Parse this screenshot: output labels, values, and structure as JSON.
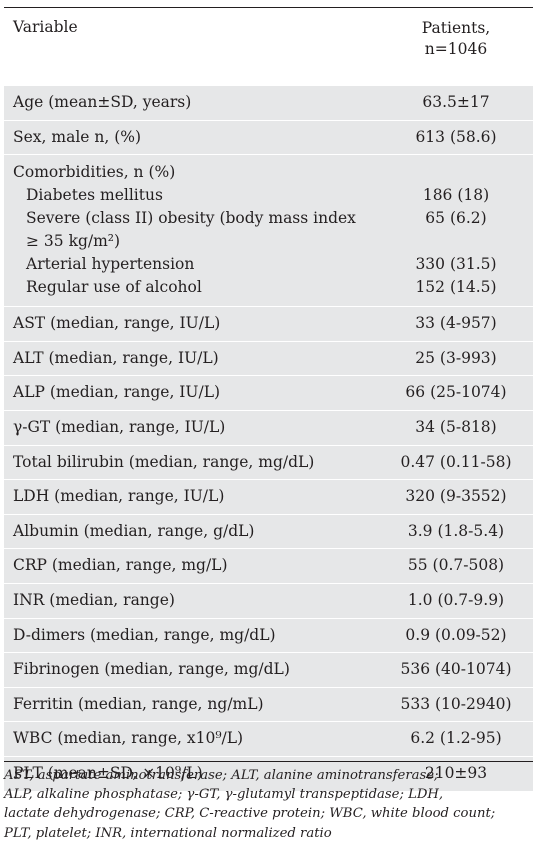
{
  "header": {
    "variable": "Variable",
    "patients_line1": "Patients,",
    "patients_line2": "n=1046"
  },
  "rows_top": [
    {
      "label": "Age (mean±SD, years)",
      "value": "63.5±17"
    },
    {
      "label": "Sex, male n, (%)",
      "value": "613 (58.6)"
    }
  ],
  "comorbidities": {
    "title": "Comorbidities, n (%)",
    "items": [
      {
        "label": "Diabetes mellitus",
        "value": "186 (18)"
      },
      {
        "label_line1": "Severe (class II) obesity (body mass index",
        "label_line2": "≥ 35 kg/m²)",
        "value": "65 (6.2)"
      },
      {
        "label": "Arterial hypertension",
        "value": "330 (31.5)"
      },
      {
        "label": "Regular use of alcohol",
        "value": "152 (14.5)"
      }
    ]
  },
  "rows_bottom": [
    {
      "label": "AST (median, range, IU/L)",
      "value": "33 (4-957)"
    },
    {
      "label": "ALT (median, range, IU/L)",
      "value": "25 (3-993)"
    },
    {
      "label": "ALP (median, range, IU/L)",
      "value": "66 (25-1074)"
    },
    {
      "label": "γ-GT (median, range, IU/L)",
      "value": "34 (5-818)"
    },
    {
      "label": "Total bilirubin (median, range, mg/dL)",
      "value": "0.47 (0.11-58)"
    },
    {
      "label": "LDH (median, range, IU/L)",
      "value": "320 (9-3552)"
    },
    {
      "label": "Albumin (median, range, g/dL)",
      "value": "3.9 (1.8-5.4)"
    },
    {
      "label": "CRP (median, range, mg/L)",
      "value": "55 (0.7-508)"
    },
    {
      "label": "INR (median, range)",
      "value": "1.0 (0.7-9.9)"
    },
    {
      "label": "D-dimers (median, range, mg/dL)",
      "value": "0.9 (0.09-52)"
    },
    {
      "label": "Fibrinogen (median, range, mg/dL)",
      "value": "536 (40-1074)"
    },
    {
      "label": "Ferritin (median, range, ng/mL)",
      "value": "533 (10-2940)"
    },
    {
      "label": "WBC (median, range, x10⁹/L)",
      "value": "6.2 (1.2-95)"
    },
    {
      "label": "PLT (mean±SD, ×10⁹/L)",
      "value": "210±93"
    }
  ],
  "footnote": {
    "line1": "AST, aspartate aminotransferase; ALT, alanine aminotransferase;",
    "line2": "ALP, alkaline phosphatase; γ-GT, γ-glutamyl transpeptidase; LDH,",
    "line3": "lactate dehydrogenase; CRP, C-reactive protein; WBC, white blood count;",
    "line4": "PLT, platelet; INR, international normalized ratio"
  },
  "colors": {
    "band": "#e6e7e8",
    "text": "#231f20",
    "rule": "#231f20"
  }
}
